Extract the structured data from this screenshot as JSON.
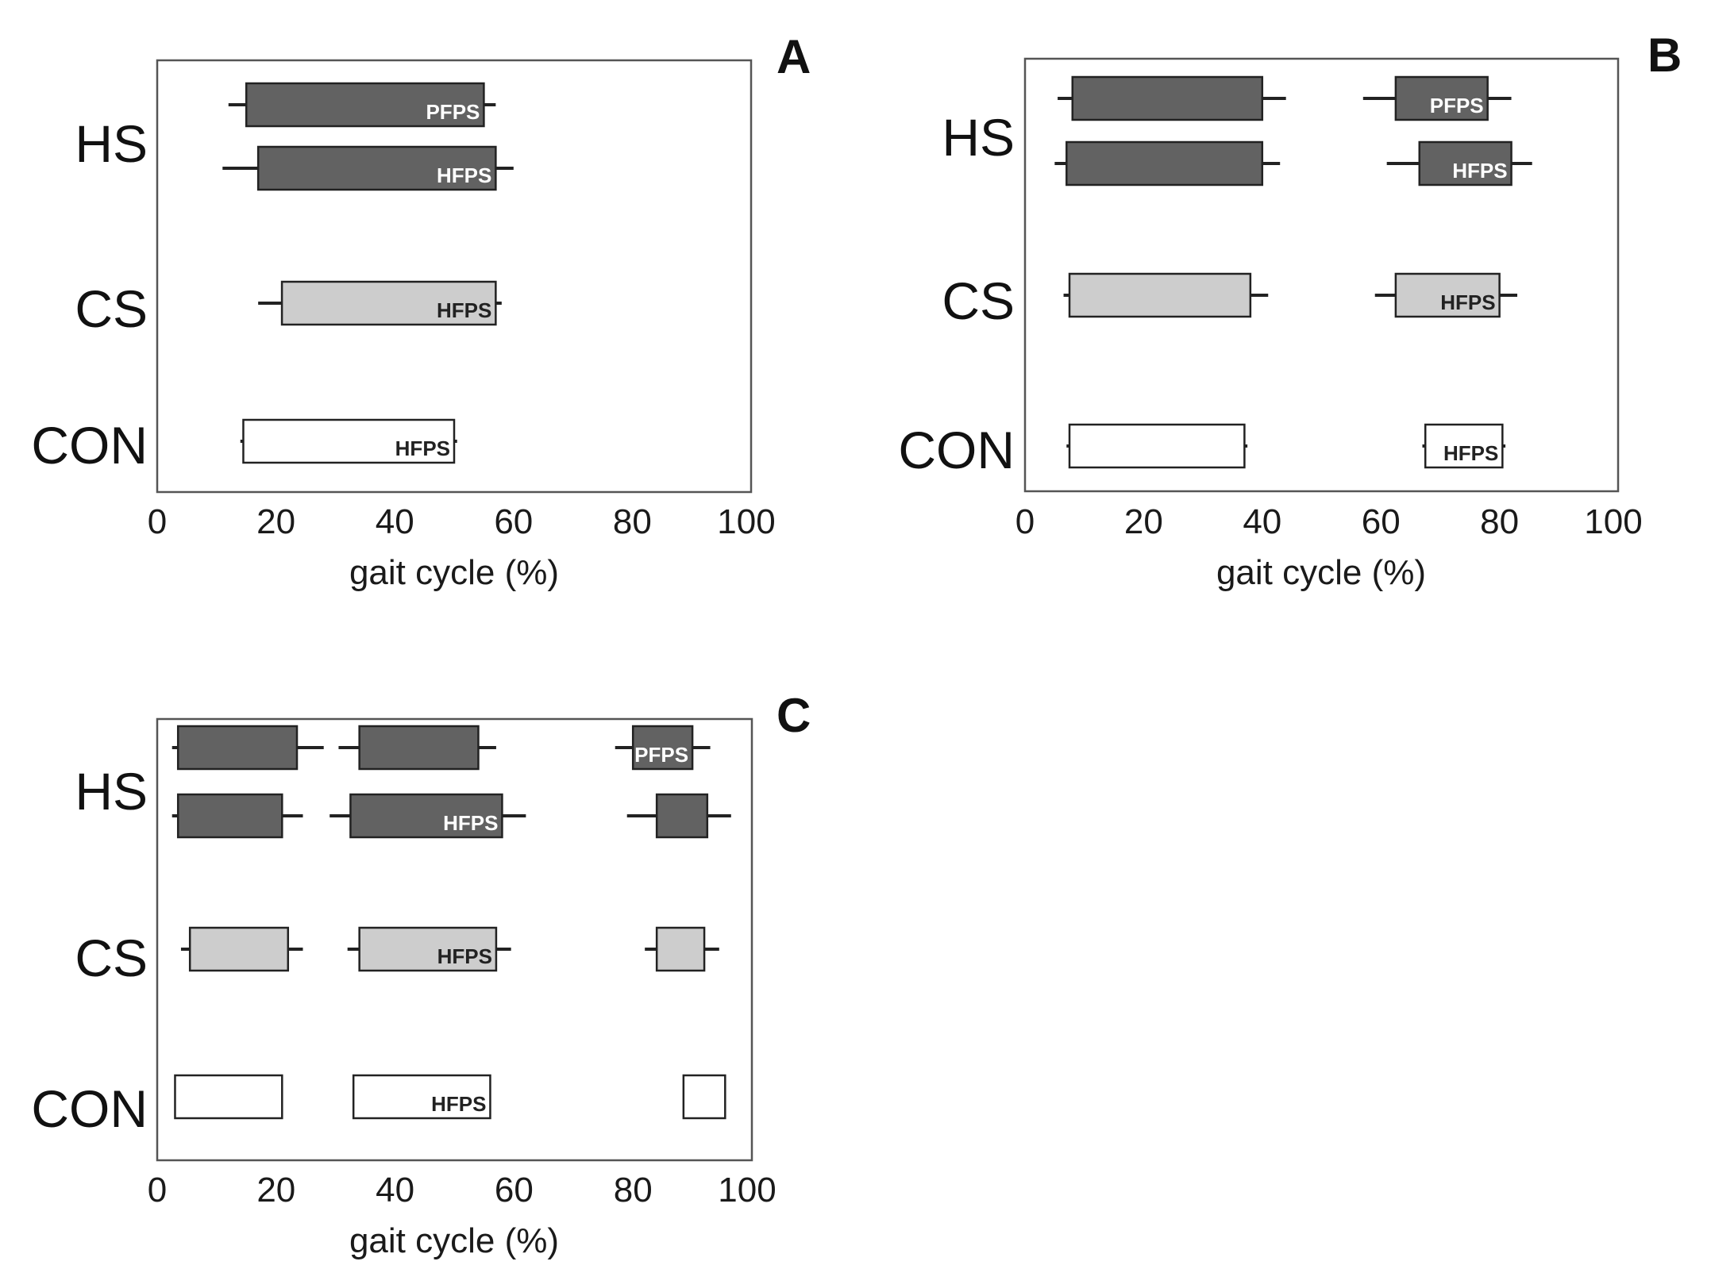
{
  "colors": {
    "HS": "#626262",
    "CS": "#cdcdcd",
    "CON": "#ffffff"
  },
  "chart_data": [
    {
      "panel": "A",
      "type": "bar",
      "orientation": "horizontal-range",
      "xlabel": "gait cycle (%)",
      "xlim": [
        0,
        100
      ],
      "xticks": [
        "0",
        "20",
        "40",
        "60",
        "80",
        "100"
      ],
      "groups": [
        "HS",
        "CS",
        "CON"
      ],
      "series": [
        {
          "name": "HS-1",
          "group": "HS",
          "row": 0,
          "bars": [
            {
              "start": 15,
              "end": 55,
              "ws": 12,
              "we": 57,
              "label": "PFPS"
            }
          ]
        },
        {
          "name": "HS-2",
          "group": "HS",
          "row": 1,
          "bars": [
            {
              "start": 17,
              "end": 57,
              "ws": 11,
              "we": 60,
              "label": "HFPS"
            }
          ]
        },
        {
          "name": "CS",
          "group": "CS",
          "row": 0,
          "bars": [
            {
              "start": 21,
              "end": 57,
              "ws": 17,
              "we": 58,
              "label": "HFPS"
            }
          ]
        },
        {
          "name": "CON",
          "group": "CON",
          "row": 0,
          "bars": [
            {
              "start": 14.5,
              "end": 50,
              "ws": 14,
              "we": 50.5,
              "label": "HFPS"
            }
          ]
        }
      ]
    },
    {
      "panel": "B",
      "type": "bar",
      "orientation": "horizontal-range",
      "xlabel": "gait cycle (%)",
      "xlim": [
        0,
        100
      ],
      "xticks": [
        "0",
        "20",
        "40",
        "60",
        "80",
        "100"
      ],
      "groups": [
        "HS",
        "CS",
        "CON"
      ],
      "series": [
        {
          "name": "HS-1",
          "group": "HS",
          "row": 0,
          "bars": [
            {
              "start": 8,
              "end": 40,
              "ws": 5.5,
              "we": 44,
              "label": ""
            },
            {
              "start": 62.5,
              "end": 78,
              "ws": 57,
              "we": 82,
              "label": "PFPS"
            }
          ]
        },
        {
          "name": "HS-2",
          "group": "HS",
          "row": 1,
          "bars": [
            {
              "start": 7,
              "end": 40,
              "ws": 5,
              "we": 43,
              "label": ""
            },
            {
              "start": 66.5,
              "end": 82,
              "ws": 61,
              "we": 85.5,
              "label": "HFPS"
            }
          ]
        },
        {
          "name": "CS",
          "group": "CS",
          "row": 0,
          "bars": [
            {
              "start": 7.5,
              "end": 38,
              "ws": 6.5,
              "we": 41,
              "label": ""
            },
            {
              "start": 62.5,
              "end": 80,
              "ws": 59,
              "we": 83,
              "label": "HFPS"
            }
          ]
        },
        {
          "name": "CON",
          "group": "CON",
          "row": 0,
          "bars": [
            {
              "start": 7.5,
              "end": 37,
              "ws": 7,
              "we": 37.5,
              "label": ""
            },
            {
              "start": 67.5,
              "end": 80.5,
              "ws": 67,
              "we": 81,
              "label": "HFPS"
            }
          ]
        }
      ]
    },
    {
      "panel": "C",
      "type": "bar",
      "orientation": "horizontal-range",
      "xlabel": "gait cycle (%)",
      "xlim": [
        0,
        100
      ],
      "xticks": [
        "0",
        "20",
        "40",
        "60",
        "80",
        "100"
      ],
      "groups": [
        "HS",
        "CS",
        "CON"
      ],
      "series": [
        {
          "name": "HS-1",
          "group": "HS",
          "row": 0,
          "bars": [
            {
              "start": 3.5,
              "end": 23.5,
              "ws": 2.5,
              "we": 28,
              "label": ""
            },
            {
              "start": 34,
              "end": 54,
              "ws": 30.5,
              "we": 57,
              "label": ""
            },
            {
              "start": 80,
              "end": 90,
              "ws": 77,
              "we": 93,
              "label": "PFPS"
            }
          ]
        },
        {
          "name": "HS-2",
          "group": "HS",
          "row": 1,
          "bars": [
            {
              "start": 3.5,
              "end": 21,
              "ws": 2.5,
              "we": 24.5,
              "label": ""
            },
            {
              "start": 32.5,
              "end": 58,
              "ws": 29,
              "we": 62,
              "label": "HFPS"
            },
            {
              "start": 84,
              "end": 92.5,
              "ws": 79,
              "we": 96.5,
              "label": ""
            }
          ]
        },
        {
          "name": "CS",
          "group": "CS",
          "row": 0,
          "bars": [
            {
              "start": 5.5,
              "end": 22,
              "ws": 4,
              "we": 24.5,
              "label": ""
            },
            {
              "start": 34,
              "end": 57,
              "ws": 32,
              "we": 59.5,
              "label": "HFPS"
            },
            {
              "start": 84,
              "end": 92,
              "ws": 82,
              "we": 94.5,
              "label": ""
            }
          ]
        },
        {
          "name": "CON",
          "group": "CON",
          "row": 0,
          "bars": [
            {
              "start": 3,
              "end": 21,
              "ws": 3,
              "we": 21,
              "label": ""
            },
            {
              "start": 33,
              "end": 56,
              "ws": 33,
              "we": 56,
              "label": "HFPS"
            },
            {
              "start": 88.5,
              "end": 95.5,
              "ws": 88.5,
              "we": 95.5,
              "label": ""
            }
          ]
        }
      ]
    }
  ]
}
